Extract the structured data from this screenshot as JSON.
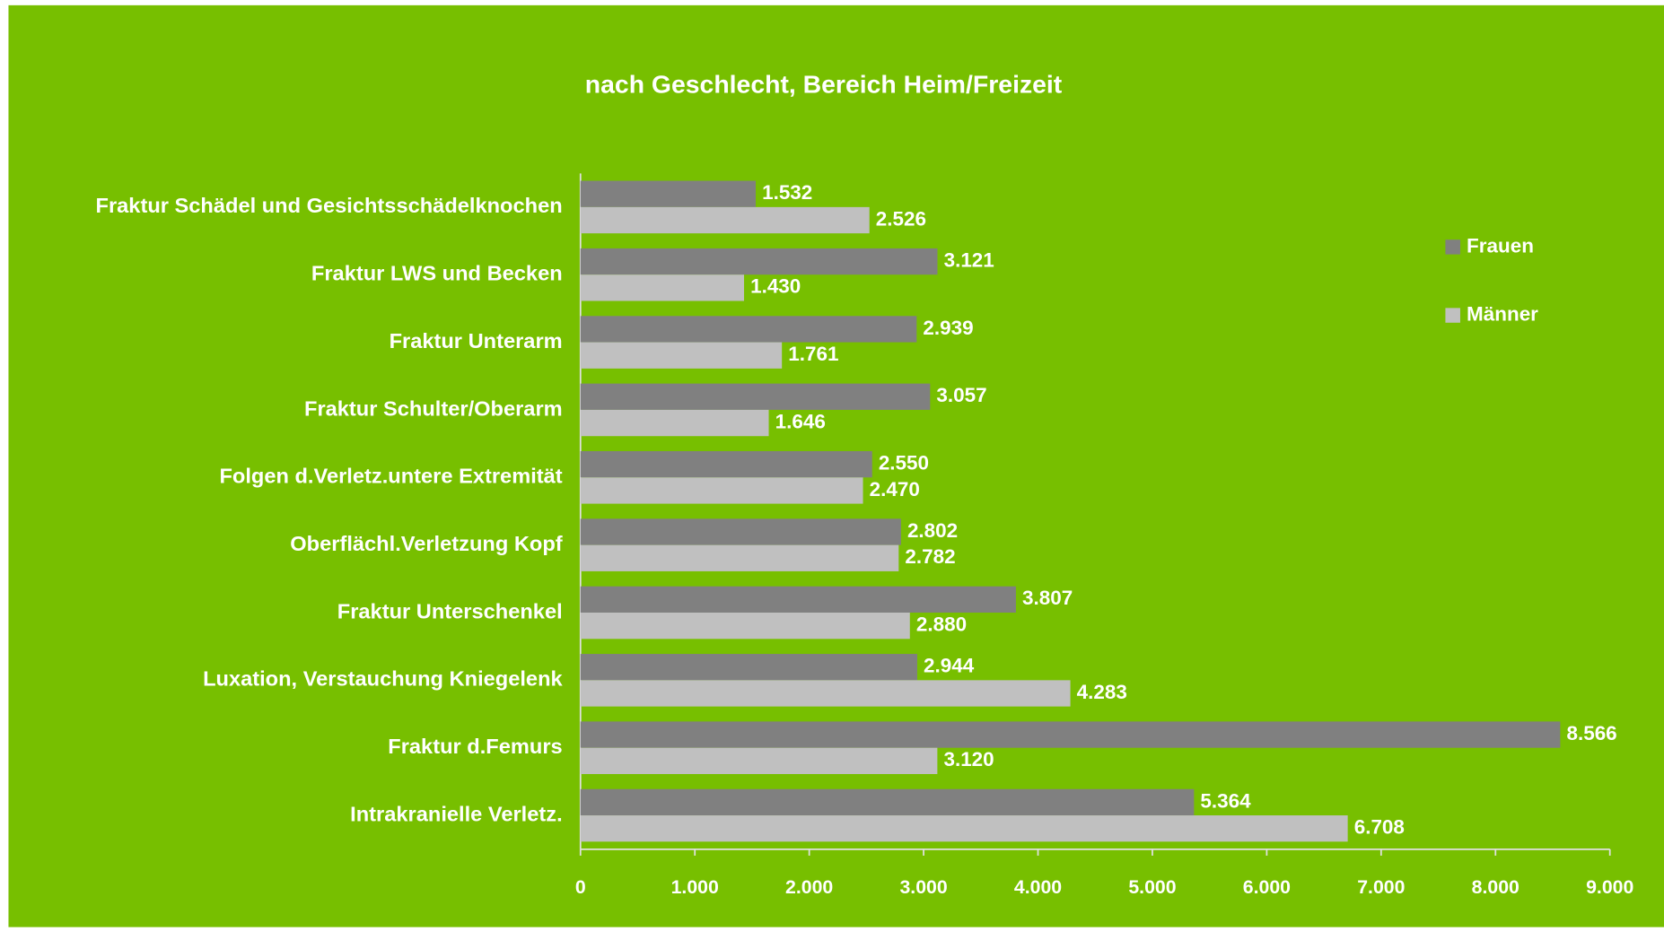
{
  "chart_data": {
    "type": "hbar",
    "subtitle": "nach Geschlecht, Bereich Heim/Freizeit",
    "categories": [
      "Fraktur Schädel und Gesichtsschädelknochen",
      "Fraktur LWS und Becken",
      "Fraktur Unterarm",
      "Fraktur Schulter/Oberarm",
      "Folgen d.Verletz.untere Extremität",
      "Oberflächl.Verletzung Kopf",
      "Fraktur Unterschenkel",
      "Luxation, Verstauchung Kniegelenk",
      "Fraktur d.Femurs",
      "Intrakranielle Verletz."
    ],
    "series": [
      {
        "name": "Frauen",
        "color": "#808080",
        "values": [
          1532,
          3121,
          2939,
          3057,
          2550,
          2802,
          3807,
          2944,
          8566,
          5364
        ],
        "value_labels": [
          "1.532",
          "3.121",
          "2.939",
          "3.057",
          "2.550",
          "2.802",
          "3.807",
          "2.944",
          "8.566",
          "5.364"
        ]
      },
      {
        "name": "Männer",
        "color": "#c0c0c0",
        "values": [
          2526,
          1430,
          1761,
          1646,
          2470,
          2782,
          2880,
          4283,
          3120,
          6708
        ],
        "value_labels": [
          "2.526",
          "1.430",
          "1.761",
          "1.646",
          "2.470",
          "2.782",
          "2.880",
          "4.283",
          "3.120",
          "6.708"
        ]
      }
    ],
    "xlim": [
      0,
      9000
    ],
    "xticks": [
      0,
      {
        "value": 1000,
        "label": "1.000"
      },
      {
        "value": 2000,
        "label": "2.000"
      },
      {
        "value": 3000,
        "label": "3.000"
      },
      {
        "value": 4000,
        "label": "4.000"
      },
      {
        "value": 5000,
        "label": "5.000"
      },
      {
        "value": 6000,
        "label": "6.000"
      },
      {
        "value": 7000,
        "label": "7.000"
      },
      {
        "value": 8000,
        "label": "8.000"
      },
      {
        "value": 9000,
        "label": "9.000"
      }
    ],
    "legend": "right"
  }
}
